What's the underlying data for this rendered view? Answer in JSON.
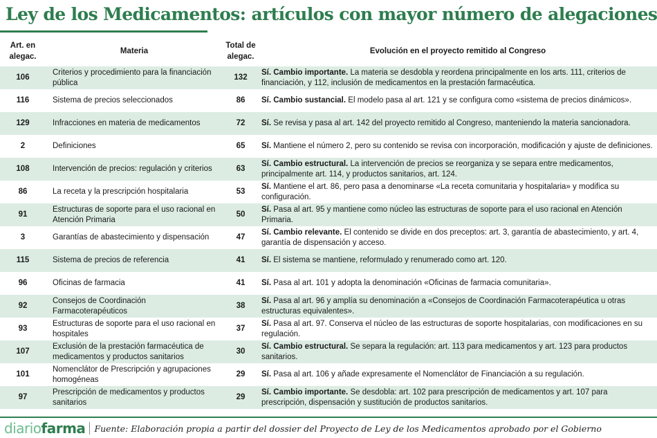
{
  "title": "Ley de los Medicamentos: artículos con mayor número de alegaciones",
  "headers": {
    "art": "Art. en alegac.",
    "materia": "Materia",
    "total": "Total de alegac.",
    "evolucion": "Evolución en el proyecto remitido al Congreso"
  },
  "rows": [
    {
      "art": "106",
      "materia": "Criterios y procedimiento para la financiación pública",
      "total": "132",
      "evo_bold": "Sí. Cambio importante.",
      "evo_text": " La materia se desdobla y reordena principalmente en los arts. 111, criterios de financiación, y 112, inclusión de medicamentos en la prestación farmacéutica."
    },
    {
      "art": "116",
      "materia": "Sistema de precios seleccionados",
      "total": "86",
      "evo_bold": "Sí. Cambio sustancial.",
      "evo_text": " El modelo pasa al art. 121 y se configura como «sistema de precios dinámicos»."
    },
    {
      "art": "129",
      "materia": "Infracciones en materia de medicamentos",
      "total": "72",
      "evo_bold": "Sí.",
      "evo_text": " Se revisa y pasa al art. 142 del proyecto remitido al Congreso, manteniendo la materia sancionadora."
    },
    {
      "art": "2",
      "materia": "Definiciones",
      "total": "65",
      "evo_bold": "Sí.",
      "evo_text": " Mantiene el número 2, pero su contenido se revisa con incorporación, modificación y ajuste de definiciones."
    },
    {
      "art": "108",
      "materia": "Intervención de precios: regulación y criterios",
      "total": "63",
      "evo_bold": "Sí. Cambio estructural.",
      "evo_text": " La intervención de precios se reorganiza y se separa entre medicamentos, principalmente art. 114, y productos sanitarios, art. 124."
    },
    {
      "art": "86",
      "materia": "La receta y la prescripción hospitalaria",
      "total": "53",
      "evo_bold": "Sí.",
      "evo_text": " Mantiene el art. 86, pero pasa a denominarse «La receta comunitaria y hospitalaria» y modifica su configuración."
    },
    {
      "art": "91",
      "materia": "Estructuras de soporte para el uso racional en Atención Primaria",
      "total": "50",
      "evo_bold": "Sí.",
      "evo_text": " Pasa al art. 95 y mantiene como núcleo las estructuras de soporte para el uso racional en Atención Primaria."
    },
    {
      "art": "3",
      "materia": "Garantías de abastecimiento y dispensación",
      "total": "47",
      "evo_bold": "Sí. Cambio relevante.",
      "evo_text": " El contenido se divide en dos preceptos: art. 3, garantía de abastecimiento, y art. 4, garantía de dispensación y acceso."
    },
    {
      "art": "115",
      "materia": "Sistema de precios de referencia",
      "total": "41",
      "evo_bold": "Sí.",
      "evo_text": " El sistema se mantiene, reformulado y renumerado como art. 120."
    },
    {
      "art": "96",
      "materia": "Oficinas de farmacia",
      "total": "41",
      "evo_bold": "Sí.",
      "evo_text": " Pasa al art. 101 y adopta la denominación «Oficinas de farmacia comunitaria»."
    },
    {
      "art": "92",
      "materia": "Consejos de Coordinación Farmacoterapéuticos",
      "total": "38",
      "evo_bold": "Sí.",
      "evo_text": " Pasa al art. 96 y amplía su denominación a «Consejos de Coordinación Farmacoterapéutica u otras estructuras equivalentes»."
    },
    {
      "art": "93",
      "materia": "Estructuras de soporte para el uso racional en hospitales",
      "total": "37",
      "evo_bold": "Sí.",
      "evo_text": " Pasa al art. 97. Conserva el núcleo de las estructuras de soporte hospitalarias, con modificaciones en su regulación."
    },
    {
      "art": "107",
      "materia": "Exclusión de la prestación farmacéutica de medicamentos y productos sanitarios",
      "total": "30",
      "evo_bold": "Sí. Cambio estructural.",
      "evo_text": " Se separa la regulación: art. 113 para medicamentos y art. 123 para productos sanitarios."
    },
    {
      "art": "101",
      "materia": "Nomenclátor de Prescripción y agrupaciones homogéneas",
      "total": "29",
      "evo_bold": "Sí.",
      "evo_text": " Pasa al art. 106 y añade expresamente el Nomenclátor de Financiación a su regulación."
    },
    {
      "art": "97",
      "materia": "Prescripción de medicamentos y productos sanitarios",
      "total": "29",
      "evo_bold": "Sí. Cambio importante.",
      "evo_text": " Se desdobla: art. 102 para prescripción de medicamentos y art. 107 para prescripción, dispensación y sustitución de productos sanitarios."
    }
  ],
  "footer": {
    "logo_diario": "diario",
    "logo_farma": "farma",
    "source": "Fuente: Elaboración propia a partir del dossier del Proyecto de Ley de los Medicamentos aprobado por el Gobierno"
  },
  "colors": {
    "accent": "#2e7d4f",
    "stripe": "#dcece3",
    "logo_light": "#6bbd8d"
  }
}
